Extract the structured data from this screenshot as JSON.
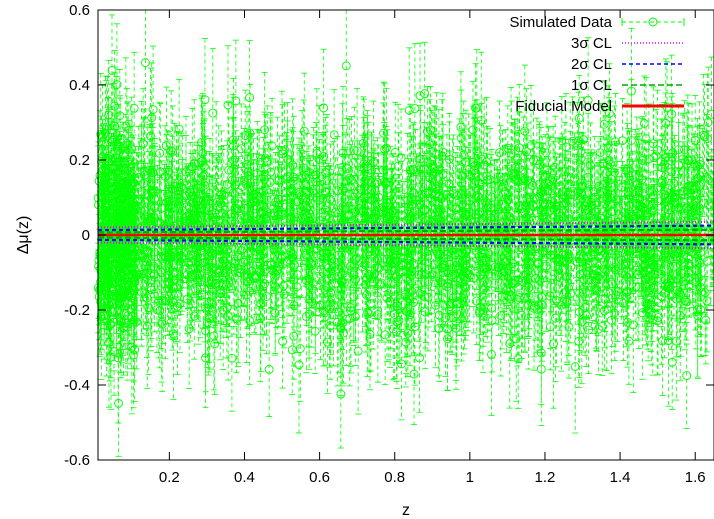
{
  "chart_data": {
    "type": "scatter",
    "xlabel": "z",
    "ylabel": "Δμ(z)",
    "xlim": [
      0.01,
      1.65
    ],
    "ylim": [
      -0.6,
      0.6
    ],
    "x_ticks": [
      0.2,
      0.4,
      0.6,
      0.8,
      1.0,
      1.2,
      1.4,
      1.6
    ],
    "x_tick_labels": [
      "0.2",
      "0.4",
      "0.6",
      "0.8",
      "1",
      "1.2",
      "1.4",
      "1.6"
    ],
    "y_ticks": [
      -0.6,
      -0.4,
      -0.2,
      0,
      0.2,
      0.4,
      0.6
    ],
    "y_tick_labels": [
      "-0.6",
      "-0.4",
      "-0.2",
      "0",
      "0.2",
      "0.4",
      "0.6"
    ],
    "grid": false,
    "legend_position": "top-right",
    "series": [
      {
        "name": "Simulated Data",
        "style": "points with dashed error bars",
        "color": "#00ff00",
        "summary": {
          "n_points_approx": 2000,
          "x_range": [
            0.01,
            1.65
          ],
          "mean_dmu": 0.0,
          "scatter_sigma": 0.15,
          "typical_error": 0.14
        }
      },
      {
        "name": "3σ CL",
        "style": "dotted",
        "color": "#ff00ff",
        "x": [
          0.01,
          1.65
        ],
        "upper": [
          0.02,
          0.035
        ],
        "lower": [
          -0.02,
          -0.035
        ]
      },
      {
        "name": "2σ CL",
        "style": "dashed",
        "color": "#0000ff",
        "x": [
          0.01,
          1.65
        ],
        "upper": [
          0.013,
          0.025
        ],
        "lower": [
          -0.013,
          -0.025
        ]
      },
      {
        "name": "1σ CL",
        "style": "dash",
        "color": "#00aa00",
        "x": [
          0.01,
          1.65
        ],
        "upper": [
          0.007,
          0.014
        ],
        "lower": [
          -0.007,
          -0.014
        ]
      },
      {
        "name": "Fiducial Model",
        "style": "solid",
        "color": "#ff0000",
        "x": [
          0.01,
          1.65
        ],
        "y": [
          0.0,
          0.0
        ]
      }
    ]
  }
}
